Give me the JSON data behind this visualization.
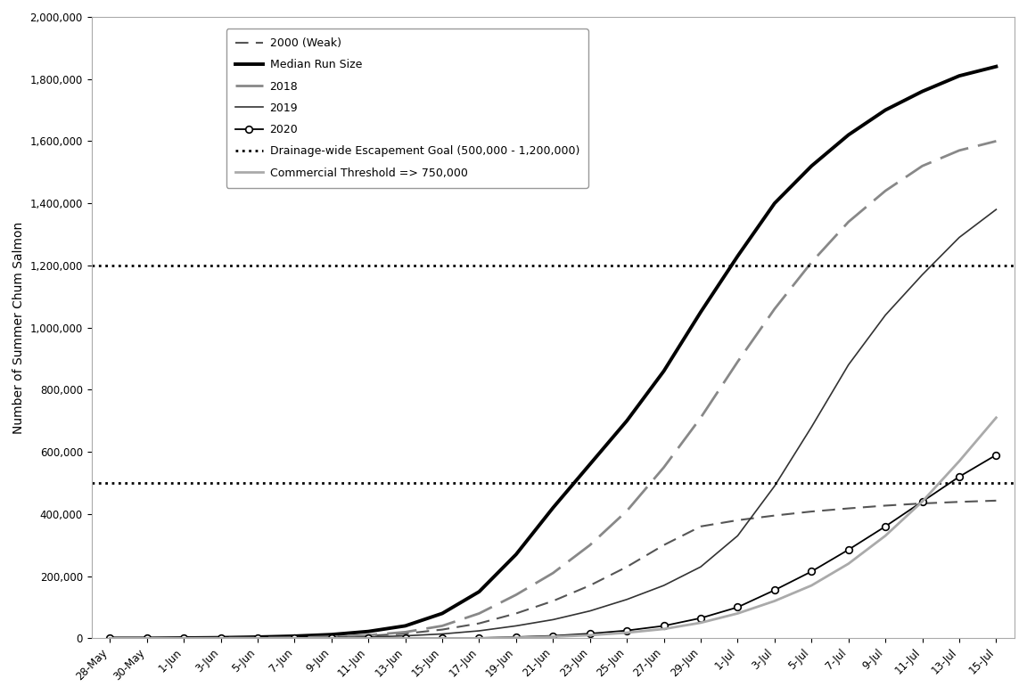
{
  "x_labels": [
    "28-May",
    "30-May",
    "1-Jun",
    "3-Jun",
    "5-Jun",
    "7-Jun",
    "9-Jun",
    "11-Jun",
    "13-Jun",
    "15-Jun",
    "17-Jun",
    "19-Jun",
    "21-Jun",
    "23-Jun",
    "25-Jun",
    "27-Jun",
    "29-Jun",
    "1-Jul",
    "3-Jul",
    "5-Jul",
    "7-Jul",
    "9-Jul",
    "11-Jul",
    "13-Jul",
    "15-Jul"
  ],
  "median": [
    0,
    0,
    1000,
    2000,
    4000,
    7000,
    12000,
    22000,
    40000,
    80000,
    150000,
    270000,
    420000,
    560000,
    700000,
    860000,
    1050000,
    1230000,
    1400000,
    1520000,
    1620000,
    1700000,
    1760000,
    1810000,
    1840000
  ],
  "year2000": [
    0,
    0,
    0,
    500,
    1000,
    2000,
    4000,
    8000,
    15000,
    28000,
    48000,
    80000,
    120000,
    170000,
    230000,
    300000,
    360000,
    380000,
    395000,
    408000,
    418000,
    427000,
    434000,
    439000,
    443000
  ],
  "year2018": [
    0,
    0,
    0,
    500,
    1000,
    2000,
    5000,
    10000,
    20000,
    40000,
    80000,
    140000,
    210000,
    300000,
    410000,
    550000,
    710000,
    890000,
    1060000,
    1210000,
    1340000,
    1440000,
    1520000,
    1570000,
    1600000
  ],
  "year2019": [
    0,
    0,
    0,
    200,
    500,
    1000,
    2000,
    4000,
    8000,
    14000,
    24000,
    40000,
    60000,
    88000,
    125000,
    170000,
    230000,
    330000,
    490000,
    680000,
    880000,
    1040000,
    1170000,
    1290000,
    1380000
  ],
  "year2020": [
    0,
    0,
    0,
    0,
    0,
    0,
    0,
    0,
    0,
    0,
    1000,
    4000,
    8000,
    15000,
    25000,
    40000,
    65000,
    100000,
    155000,
    215000,
    285000,
    360000,
    440000,
    520000,
    590000
  ],
  "commercial_y": [
    0,
    0,
    0,
    0,
    0,
    0,
    0,
    0,
    0,
    0,
    0,
    2000,
    5000,
    10000,
    18000,
    30000,
    50000,
    80000,
    120000,
    170000,
    240000,
    330000,
    440000,
    570000,
    710000
  ],
  "escapement_lower": 500000,
  "escapement_upper": 1200000,
  "ylim": [
    0,
    2000000
  ],
  "ylabel": "Number of Summer Chum Salmon",
  "legend_2000": "2000 (Weak)",
  "legend_median": "Median Run Size",
  "legend_2018": "2018",
  "legend_2019": "2019",
  "legend_2020": "2020",
  "legend_escapement": "Drainage-wide Escapement Goal (500,000 - 1,200,000)",
  "legend_commercial": "Commercial Threshold => 750,000"
}
